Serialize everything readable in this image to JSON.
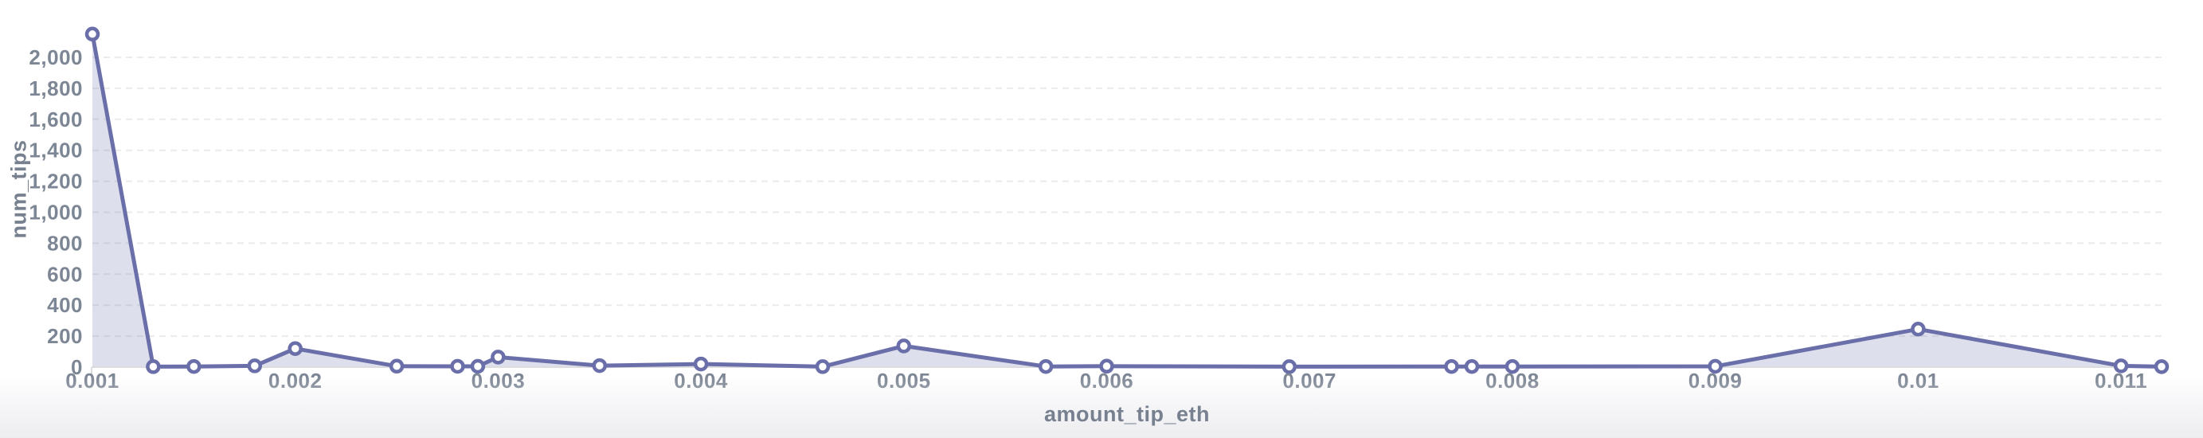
{
  "chart_data": {
    "type": "area",
    "title": "",
    "xlabel": "amount_tip_eth",
    "ylabel": "num_tips",
    "x": [
      0.001,
      0.0013,
      0.0015,
      0.0018,
      0.002,
      0.0025,
      0.0028,
      0.0029,
      0.003,
      0.0035,
      0.004,
      0.0046,
      0.005,
      0.0057,
      0.006,
      0.0069,
      0.0077,
      0.0078,
      0.008,
      0.009,
      0.01,
      0.011,
      0.0112
    ],
    "values": [
      2150,
      3,
      4,
      8,
      120,
      6,
      5,
      5,
      65,
      10,
      20,
      3,
      137,
      4,
      6,
      3,
      4,
      4,
      4,
      5,
      245,
      8,
      3
    ],
    "xlim": [
      0.001,
      0.0112
    ],
    "ylim": [
      0,
      2000
    ],
    "x_ticks": [
      {
        "value": 0.001,
        "label": "0.001"
      },
      {
        "value": 0.002,
        "label": "0.002"
      },
      {
        "value": 0.003,
        "label": "0.003"
      },
      {
        "value": 0.004,
        "label": "0.004"
      },
      {
        "value": 0.005,
        "label": "0.005"
      },
      {
        "value": 0.006,
        "label": "0.006"
      },
      {
        "value": 0.007,
        "label": "0.007"
      },
      {
        "value": 0.008,
        "label": "0.008"
      },
      {
        "value": 0.009,
        "label": "0.009"
      },
      {
        "value": 0.01,
        "label": "0.01"
      },
      {
        "value": 0.011,
        "label": "0.011"
      }
    ],
    "y_ticks": [
      {
        "value": 0,
        "label": "0"
      },
      {
        "value": 200,
        "label": "200"
      },
      {
        "value": 400,
        "label": "400"
      },
      {
        "value": 600,
        "label": "600"
      },
      {
        "value": 800,
        "label": "800"
      },
      {
        "value": 1000,
        "label": "1,000"
      },
      {
        "value": 1200,
        "label": "1,200"
      },
      {
        "value": 1400,
        "label": "1,400"
      },
      {
        "value": 1600,
        "label": "1,600"
      },
      {
        "value": 1800,
        "label": "1,800"
      },
      {
        "value": 2000,
        "label": "2,000"
      }
    ],
    "grid": "horizontal-dashed",
    "legend": "none",
    "style": {
      "line_color": "#6A6FA9",
      "area_fill_color": "rgba(106,111,169,0.22)",
      "marker_fill": "#ffffff",
      "marker_stroke": "#6A6FA9",
      "grid_color": "#EBEBEB",
      "axis_line_color": "#DCDCDE",
      "tick_label_color": "#7D8694",
      "axis_name_color": "#76808F",
      "background": "#ffffff"
    }
  }
}
